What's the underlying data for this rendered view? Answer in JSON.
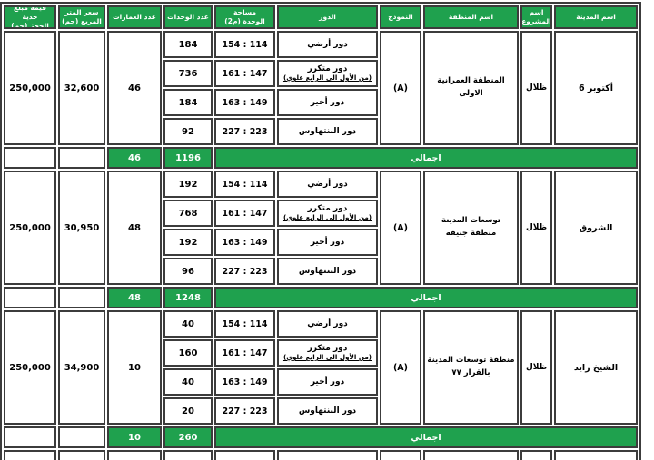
{
  "table": {
    "headers": {
      "city": "اسم المدينة",
      "project": "اسم المشروع",
      "area": "اسم المنطقة",
      "model": "النموذج",
      "floor": "الدور",
      "unit_area": "مساحة\nالوحدة (م2)",
      "units": "عدد الوحدات",
      "buildings": "عدد العمارات",
      "price": "سعر المتر\nالمربع (جم)",
      "deposit": "قيمة مبلغ جدية\nالحجز (جم)"
    },
    "total_label": "اجمالي",
    "blocks": [
      {
        "city": "أكتوبر 6",
        "project": "ظلال",
        "area": "المنطقة العمرانية الاولى",
        "model": "(A)",
        "buildings": "46",
        "price": "32,600",
        "deposit": "250,000",
        "floors": [
          {
            "name": "دور أرضي",
            "sub": "",
            "range": "154 : 114",
            "units": "184"
          },
          {
            "name": "دور متكرر",
            "sub": "(من الأول الى الرابع علوي)",
            "range": "161 : 147",
            "units": "736"
          },
          {
            "name": "دور أخير",
            "sub": "",
            "range": "163 : 149",
            "units": "184"
          },
          {
            "name": "دور البنتهاوس",
            "sub": "",
            "range": "227 : 223",
            "units": "92"
          }
        ],
        "totals": {
          "buildings": "46",
          "units": "1196"
        }
      },
      {
        "city": "الشروق",
        "project": "ظلال",
        "area": "توسعات المدينة\nمنطقة جنيفه",
        "model": "(A)",
        "buildings": "48",
        "price": "30,950",
        "deposit": "250,000",
        "floors": [
          {
            "name": "دور أرضي",
            "sub": "",
            "range": "154 : 114",
            "units": "192"
          },
          {
            "name": "دور متكرر",
            "sub": "(من الأول الى الرابع علوي)",
            "range": "161 : 147",
            "units": "768"
          },
          {
            "name": "دور أخير",
            "sub": "",
            "range": "163 : 149",
            "units": "192"
          },
          {
            "name": "دور البنتهاوس",
            "sub": "",
            "range": "227 : 223",
            "units": "96"
          }
        ],
        "totals": {
          "buildings": "48",
          "units": "1248"
        }
      },
      {
        "city": "الشيخ زايد",
        "project": "ظلال",
        "area": "منطقة توسعات المدينة\nبالقرار ٧٧",
        "model": "(A)",
        "buildings": "10",
        "price": "34,900",
        "deposit": "250,000",
        "floors": [
          {
            "name": "دور أرضي",
            "sub": "",
            "range": "154 : 114",
            "units": "40"
          },
          {
            "name": "دور متكرر",
            "sub": "(من الأول الى الرابع علوي)",
            "range": "161 : 147",
            "units": "160"
          },
          {
            "name": "دور أخير",
            "sub": "",
            "range": "163 : 149",
            "units": "40"
          },
          {
            "name": "دور البنتهاوس",
            "sub": "",
            "range": "227 : 223",
            "units": "20"
          }
        ],
        "totals": {
          "buildings": "10",
          "units": "260"
        }
      }
    ],
    "colors": {
      "accent_green": "#1FA14E",
      "border": "#3C3C3C"
    }
  }
}
